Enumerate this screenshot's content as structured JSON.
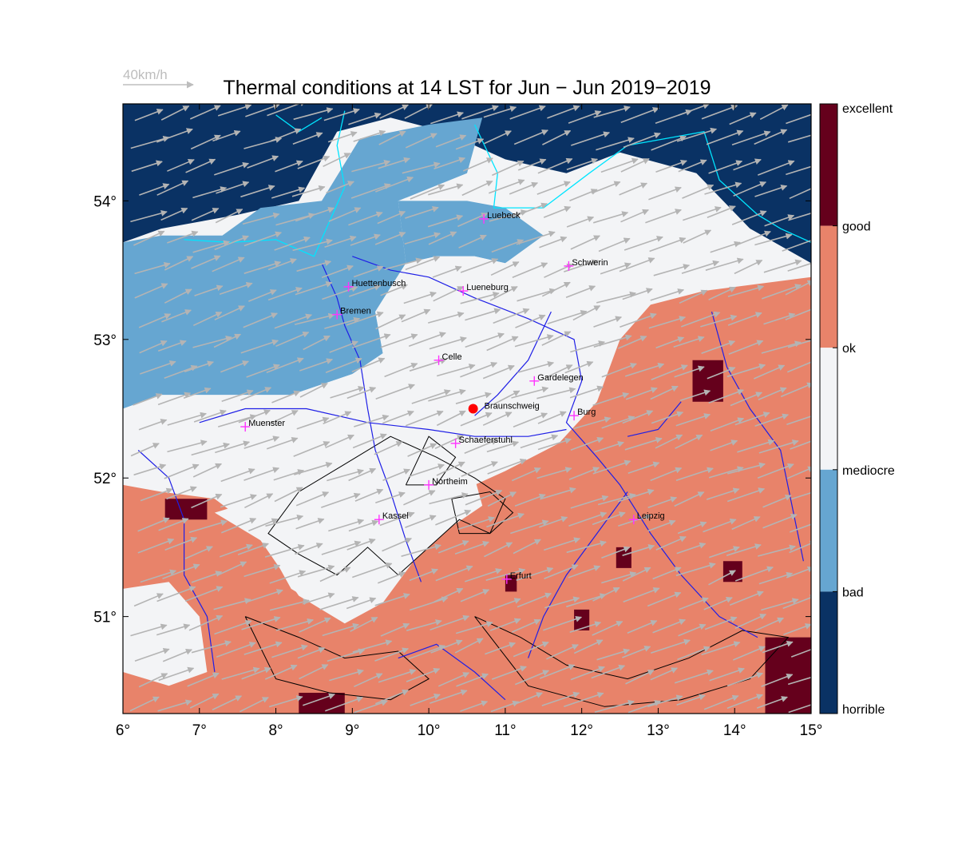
{
  "title": "Thermal conditions at 14 LST for Jun − Jun  2019−2019",
  "wind_scale": {
    "label": "40km/h"
  },
  "colors": {
    "horrible": "#0a3264",
    "bad": "#66a6d1",
    "mediocre": "#f3f4f6",
    "ok": "#f3f4f6",
    "good": "#e8836a",
    "excellent": "#65001c",
    "coast": "#00e5ff",
    "rivers": "#1f1fe6",
    "terrain": "#000000",
    "wind": "#b4b4b4",
    "town": "#ff33ff",
    "marker": "#ff0000"
  },
  "legend": {
    "labels": [
      "excellent",
      "good",
      "ok",
      "mediocre",
      "bad",
      "horrible"
    ]
  },
  "axes": {
    "x_ticks": [
      "6°",
      "7°",
      "8°",
      "9°",
      "10°",
      "11°",
      "12°",
      "13°",
      "14°",
      "15°"
    ],
    "y_ticks": [
      "54°",
      "53°",
      "52°",
      "51°"
    ],
    "lon_range": [
      6,
      15
    ],
    "lat_range": [
      50.3,
      54.7
    ]
  },
  "towns": [
    {
      "name": "Luebeck",
      "lon": 10.72,
      "lat": 53.87
    },
    {
      "name": "Schwerin",
      "lon": 11.83,
      "lat": 53.53
    },
    {
      "name": "Huettenbusch",
      "lon": 8.95,
      "lat": 53.38
    },
    {
      "name": "Lueneburg",
      "lon": 10.45,
      "lat": 53.35
    },
    {
      "name": "Bremen",
      "lon": 8.8,
      "lat": 53.18
    },
    {
      "name": "Celle",
      "lon": 10.13,
      "lat": 52.85
    },
    {
      "name": "Gardelegen",
      "lon": 11.38,
      "lat": 52.7
    },
    {
      "name": "Burg",
      "lon": 11.9,
      "lat": 52.45
    },
    {
      "name": "Muenster",
      "lon": 7.6,
      "lat": 52.37
    },
    {
      "name": "Schaeferstuhl",
      "lon": 10.35,
      "lat": 52.25
    },
    {
      "name": "Northeim",
      "lon": 10.0,
      "lat": 51.95
    },
    {
      "name": "Kassel",
      "lon": 9.35,
      "lat": 51.7
    },
    {
      "name": "Leipzig",
      "lon": 12.68,
      "lat": 51.7
    },
    {
      "name": "Erfurt",
      "lon": 11.02,
      "lat": 51.27
    }
  ],
  "marker": {
    "name": "Braunschweig",
    "lon": 10.58,
    "lat": 52.5
  },
  "regions": [
    {
      "class": "horrible",
      "points": [
        [
          6,
          54.7
        ],
        [
          15,
          54.7
        ],
        [
          15,
          53.55
        ],
        [
          14.2,
          53.8
        ],
        [
          13.5,
          54.2
        ],
        [
          12.5,
          54.35
        ],
        [
          11.8,
          54.2
        ],
        [
          11.0,
          54.3
        ],
        [
          10.2,
          54.5
        ],
        [
          9.5,
          54.6
        ],
        [
          8.8,
          54.5
        ],
        [
          8.3,
          54.0
        ],
        [
          7.5,
          53.9
        ],
        [
          6.5,
          53.8
        ],
        [
          6,
          53.7
        ]
      ]
    },
    {
      "class": "bad",
      "points": [
        [
          6,
          53.7
        ],
        [
          6.5,
          53.75
        ],
        [
          7.3,
          53.75
        ],
        [
          7.8,
          53.95
        ],
        [
          8.6,
          54.0
        ],
        [
          9.1,
          54.45
        ],
        [
          10.0,
          54.55
        ],
        [
          10.7,
          54.6
        ],
        [
          10.5,
          54.2
        ],
        [
          9.6,
          54.0
        ],
        [
          9.7,
          53.55
        ],
        [
          9.3,
          53.2
        ],
        [
          9.4,
          52.9
        ],
        [
          9.0,
          52.75
        ],
        [
          8.2,
          52.6
        ],
        [
          7.3,
          52.6
        ],
        [
          6.5,
          52.6
        ],
        [
          6,
          52.5
        ]
      ]
    },
    {
      "class": "bad",
      "points": [
        [
          9.6,
          54.0
        ],
        [
          10.5,
          54.0
        ],
        [
          11.0,
          53.95
        ],
        [
          11.5,
          53.75
        ],
        [
          11.0,
          53.55
        ],
        [
          10.6,
          53.6
        ],
        [
          10.1,
          53.6
        ],
        [
          9.7,
          53.55
        ]
      ]
    },
    {
      "class": "mediocre",
      "points": [
        [
          6,
          52.5
        ],
        [
          6.5,
          52.6
        ],
        [
          7.3,
          52.6
        ],
        [
          8.2,
          52.6
        ],
        [
          9.0,
          52.75
        ],
        [
          9.4,
          52.9
        ],
        [
          9.3,
          53.2
        ],
        [
          9.7,
          53.55
        ],
        [
          10.1,
          53.6
        ],
        [
          10.6,
          53.6
        ],
        [
          11.0,
          53.55
        ],
        [
          11.5,
          53.75
        ],
        [
          12.2,
          54.0
        ],
        [
          13.0,
          54.15
        ],
        [
          13.5,
          54.1
        ],
        [
          14.2,
          53.8
        ],
        [
          15,
          53.55
        ],
        [
          15,
          53.5
        ],
        [
          14.3,
          53.45
        ],
        [
          13.5,
          53.4
        ],
        [
          12.8,
          53.3
        ],
        [
          12.4,
          53.0
        ],
        [
          12.2,
          52.7
        ],
        [
          12.0,
          52.35
        ],
        [
          11.2,
          52.3
        ],
        [
          10.5,
          52.15
        ],
        [
          9.6,
          52.0
        ],
        [
          8.8,
          51.9
        ],
        [
          7.6,
          52.0
        ],
        [
          6.5,
          51.95
        ],
        [
          6,
          51.95
        ]
      ]
    },
    {
      "class": "good",
      "points": [
        [
          6,
          51.95
        ],
        [
          6.5,
          51.9
        ],
        [
          7.2,
          51.85
        ],
        [
          7.8,
          51.6
        ],
        [
          8.2,
          51.2
        ],
        [
          8.8,
          51.0
        ],
        [
          9.3,
          51.3
        ],
        [
          9.8,
          51.6
        ],
        [
          10.4,
          51.9
        ],
        [
          11.0,
          52.05
        ],
        [
          11.7,
          52.25
        ],
        [
          12.2,
          52.55
        ],
        [
          12.5,
          53.0
        ],
        [
          12.9,
          53.25
        ],
        [
          13.6,
          53.35
        ],
        [
          14.3,
          53.4
        ],
        [
          15,
          53.45
        ],
        [
          15,
          50.3
        ],
        [
          6,
          50.3
        ]
      ]
    },
    {
      "class": "mediocre",
      "points": [
        [
          7.2,
          51.75
        ],
        [
          7.8,
          51.55
        ],
        [
          8.3,
          51.15
        ],
        [
          8.9,
          50.95
        ],
        [
          9.4,
          51.1
        ],
        [
          9.8,
          51.4
        ],
        [
          10.3,
          51.65
        ],
        [
          10.7,
          51.8
        ],
        [
          10.6,
          52.0
        ],
        [
          10.0,
          52.05
        ],
        [
          9.3,
          52.0
        ],
        [
          8.5,
          51.9
        ],
        [
          7.8,
          51.85
        ]
      ]
    },
    {
      "class": "mediocre",
      "points": [
        [
          6,
          51.2
        ],
        [
          6.6,
          51.25
        ],
        [
          7.0,
          51.0
        ],
        [
          7.1,
          50.6
        ],
        [
          6.6,
          50.5
        ],
        [
          6,
          50.6
        ]
      ]
    },
    {
      "class": "excellent",
      "points": [
        [
          13.45,
          52.85
        ],
        [
          13.85,
          52.85
        ],
        [
          13.85,
          52.55
        ],
        [
          13.45,
          52.55
        ]
      ]
    },
    {
      "class": "excellent",
      "points": [
        [
          14.4,
          50.85
        ],
        [
          15,
          50.85
        ],
        [
          15,
          50.3
        ],
        [
          14.4,
          50.3
        ]
      ]
    },
    {
      "class": "excellent",
      "points": [
        [
          6.55,
          51.85
        ],
        [
          7.1,
          51.85
        ],
        [
          7.1,
          51.7
        ],
        [
          6.55,
          51.7
        ]
      ]
    },
    {
      "class": "excellent",
      "points": [
        [
          8.3,
          50.45
        ],
        [
          8.9,
          50.45
        ],
        [
          8.9,
          50.3
        ],
        [
          8.3,
          50.3
        ]
      ]
    },
    {
      "class": "excellent",
      "points": [
        [
          12.45,
          51.5
        ],
        [
          12.65,
          51.5
        ],
        [
          12.65,
          51.35
        ],
        [
          12.45,
          51.35
        ]
      ]
    },
    {
      "class": "excellent",
      "points": [
        [
          11.9,
          51.05
        ],
        [
          12.1,
          51.05
        ],
        [
          12.1,
          50.9
        ],
        [
          11.9,
          50.9
        ]
      ]
    },
    {
      "class": "excellent",
      "points": [
        [
          13.85,
          51.4
        ],
        [
          14.1,
          51.4
        ],
        [
          14.1,
          51.25
        ],
        [
          13.85,
          51.25
        ]
      ]
    },
    {
      "class": "excellent",
      "points": [
        [
          11.0,
          51.3
        ],
        [
          11.15,
          51.3
        ],
        [
          11.15,
          51.18
        ],
        [
          11.0,
          51.18
        ]
      ]
    }
  ],
  "terrain_contours": [
    {
      "points": [
        [
          8.3,
          51.9
        ],
        [
          8.9,
          52.1
        ],
        [
          9.5,
          52.3
        ],
        [
          10.1,
          52.15
        ],
        [
          10.6,
          52.0
        ],
        [
          11.0,
          51.85
        ],
        [
          10.8,
          51.6
        ],
        [
          10.4,
          51.7
        ],
        [
          10.0,
          51.5
        ],
        [
          9.6,
          51.3
        ],
        [
          9.2,
          51.5
        ],
        [
          8.8,
          51.3
        ],
        [
          8.3,
          51.45
        ],
        [
          7.9,
          51.6
        ],
        [
          8.3,
          51.9
        ]
      ]
    },
    {
      "points": [
        [
          10.3,
          51.85
        ],
        [
          10.8,
          51.9
        ],
        [
          11.1,
          51.75
        ],
        [
          10.8,
          51.6
        ],
        [
          10.4,
          51.6
        ],
        [
          10.3,
          51.85
        ]
      ]
    },
    {
      "points": [
        [
          7.6,
          51.0
        ],
        [
          8.3,
          50.85
        ],
        [
          8.9,
          50.7
        ],
        [
          9.6,
          50.75
        ],
        [
          10.0,
          50.55
        ],
        [
          9.5,
          50.4
        ],
        [
          8.7,
          50.45
        ],
        [
          8.0,
          50.55
        ],
        [
          7.6,
          51.0
        ]
      ]
    },
    {
      "points": [
        [
          10.6,
          51.0
        ],
        [
          11.2,
          50.85
        ],
        [
          11.8,
          50.65
        ],
        [
          12.6,
          50.55
        ],
        [
          13.4,
          50.7
        ],
        [
          14.1,
          50.9
        ],
        [
          14.7,
          50.85
        ],
        [
          14.2,
          50.55
        ],
        [
          13.3,
          50.4
        ],
        [
          12.3,
          50.35
        ],
        [
          11.3,
          50.5
        ],
        [
          10.6,
          51.0
        ]
      ]
    },
    {
      "points": [
        [
          9.7,
          51.95
        ],
        [
          10.0,
          52.3
        ],
        [
          10.35,
          52.15
        ],
        [
          10.1,
          51.95
        ],
        [
          9.7,
          51.95
        ]
      ]
    }
  ],
  "rivers": [
    {
      "points": [
        [
          9.0,
          53.6
        ],
        [
          9.5,
          53.5
        ],
        [
          10.0,
          53.45
        ],
        [
          10.6,
          53.3
        ],
        [
          11.3,
          53.15
        ],
        [
          11.9,
          53.0
        ],
        [
          12.0,
          52.7
        ],
        [
          11.8,
          52.4
        ],
        [
          12.2,
          52.15
        ],
        [
          12.5,
          51.95
        ],
        [
          12.9,
          51.6
        ],
        [
          13.3,
          51.3
        ],
        [
          13.8,
          51.0
        ],
        [
          14.3,
          50.85
        ]
      ]
    },
    {
      "points": [
        [
          8.6,
          53.55
        ],
        [
          8.8,
          53.3
        ],
        [
          8.9,
          53.1
        ],
        [
          9.1,
          52.85
        ],
        [
          9.2,
          52.5
        ],
        [
          9.3,
          52.2
        ],
        [
          9.5,
          51.9
        ],
        [
          9.7,
          51.55
        ],
        [
          9.9,
          51.25
        ]
      ]
    },
    {
      "points": [
        [
          7.0,
          52.4
        ],
        [
          7.6,
          52.5
        ],
        [
          8.4,
          52.5
        ],
        [
          9.2,
          52.4
        ],
        [
          10.0,
          52.35
        ],
        [
          10.6,
          52.3
        ],
        [
          11.3,
          52.3
        ],
        [
          11.8,
          52.35
        ]
      ]
    },
    {
      "points": [
        [
          6.2,
          52.2
        ],
        [
          6.6,
          52.0
        ],
        [
          6.8,
          51.7
        ],
        [
          6.8,
          51.3
        ],
        [
          7.1,
          51.0
        ],
        [
          7.2,
          50.6
        ]
      ]
    },
    {
      "points": [
        [
          11.6,
          53.2
        ],
        [
          11.3,
          52.85
        ],
        [
          10.9,
          52.6
        ],
        [
          10.6,
          52.45
        ]
      ]
    },
    {
      "points": [
        [
          12.6,
          51.9
        ],
        [
          12.2,
          51.6
        ],
        [
          11.8,
          51.3
        ],
        [
          11.5,
          51.0
        ],
        [
          11.3,
          50.7
        ]
      ]
    },
    {
      "points": [
        [
          13.7,
          53.2
        ],
        [
          13.9,
          52.8
        ],
        [
          14.2,
          52.5
        ],
        [
          14.6,
          52.2
        ],
        [
          14.75,
          51.8
        ],
        [
          14.9,
          51.4
        ]
      ]
    },
    {
      "points": [
        [
          9.6,
          50.7
        ],
        [
          10.1,
          50.8
        ],
        [
          10.6,
          50.6
        ],
        [
          11.0,
          50.4
        ]
      ]
    },
    {
      "points": [
        [
          13.3,
          52.55
        ],
        [
          13.0,
          52.35
        ],
        [
          12.6,
          52.3
        ]
      ]
    }
  ],
  "coastlines": [
    {
      "points": [
        [
          6.8,
          53.72
        ],
        [
          7.4,
          53.7
        ],
        [
          8.0,
          53.72
        ],
        [
          8.5,
          53.6
        ],
        [
          8.7,
          53.85
        ],
        [
          8.9,
          54.1
        ],
        [
          8.8,
          54.4
        ],
        [
          8.9,
          54.65
        ]
      ]
    },
    {
      "points": [
        [
          10.6,
          54.55
        ],
        [
          10.9,
          54.2
        ],
        [
          10.85,
          53.95
        ],
        [
          11.5,
          53.95
        ],
        [
          12.1,
          54.2
        ],
        [
          12.6,
          54.4
        ],
        [
          13.1,
          54.45
        ],
        [
          13.6,
          54.5
        ],
        [
          13.8,
          54.15
        ],
        [
          14.3,
          53.9
        ],
        [
          14.6,
          53.8
        ],
        [
          15.0,
          53.7
        ]
      ]
    },
    {
      "points": [
        [
          8.0,
          54.62
        ],
        [
          8.3,
          54.5
        ],
        [
          8.6,
          54.6
        ]
      ]
    }
  ],
  "wind_vectors": [
    {
      "speed": 22,
      "angle": 200,
      "density": 1.0
    }
  ]
}
